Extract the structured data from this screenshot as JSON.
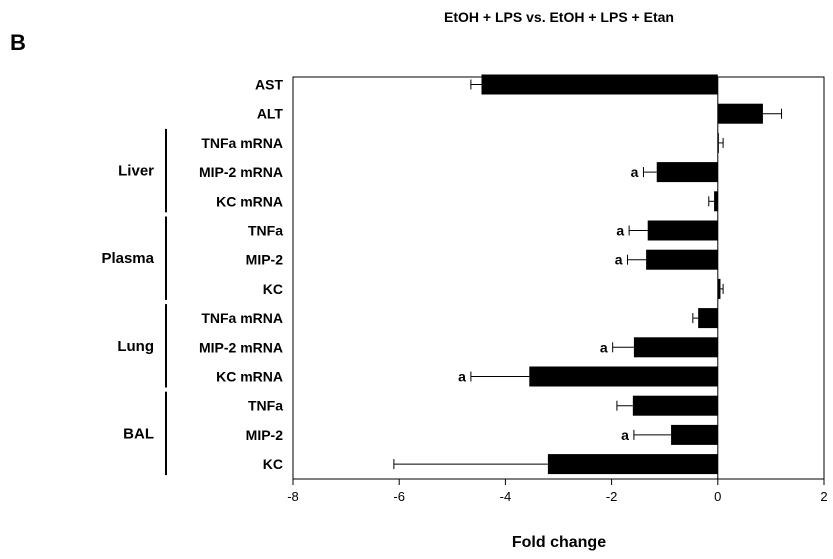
{
  "panel_label": "B",
  "chart_data": {
    "type": "bar",
    "orientation": "horizontal",
    "title": "EtOH + LPS vs. EtOH + LPS + Etan",
    "xlabel": "Fold change",
    "xlim": [
      -8,
      2
    ],
    "xticks": [
      "-8",
      "-6",
      "-4",
      "-2",
      "0",
      "2"
    ],
    "grid": false,
    "categories": [
      "AST",
      "ALT",
      "TNFa mRNA",
      "MIP-2 mRNA",
      "KC mRNA",
      "TNFa",
      "MIP-2",
      "KC",
      "TNFa mRNA",
      "MIP-2 mRNA",
      "KC mRNA",
      "TNFa",
      "MIP-2",
      "KC"
    ],
    "values": [
      -4.45,
      0.85,
      0.02,
      -1.15,
      -0.07,
      -1.32,
      -1.35,
      0.05,
      -0.37,
      -1.58,
      -3.55,
      -1.6,
      -0.88,
      -3.2
    ],
    "errors": [
      0.2,
      0.35,
      0.08,
      0.25,
      0.1,
      0.35,
      0.35,
      0.05,
      0.1,
      0.4,
      1.1,
      0.3,
      0.7,
      2.9
    ],
    "annotations": [
      "",
      "",
      "",
      "a",
      "",
      "a",
      "a",
      "",
      "",
      "a",
      "a",
      "",
      "a",
      ""
    ],
    "groups": [
      {
        "label": "Liver",
        "rows": [
          2,
          4
        ]
      },
      {
        "label": "Plasma",
        "rows": [
          5,
          7
        ]
      },
      {
        "label": "Lung",
        "rows": [
          8,
          10
        ]
      },
      {
        "label": "BAL",
        "rows": [
          11,
          13
        ]
      }
    ],
    "bar_color": "#000000"
  }
}
